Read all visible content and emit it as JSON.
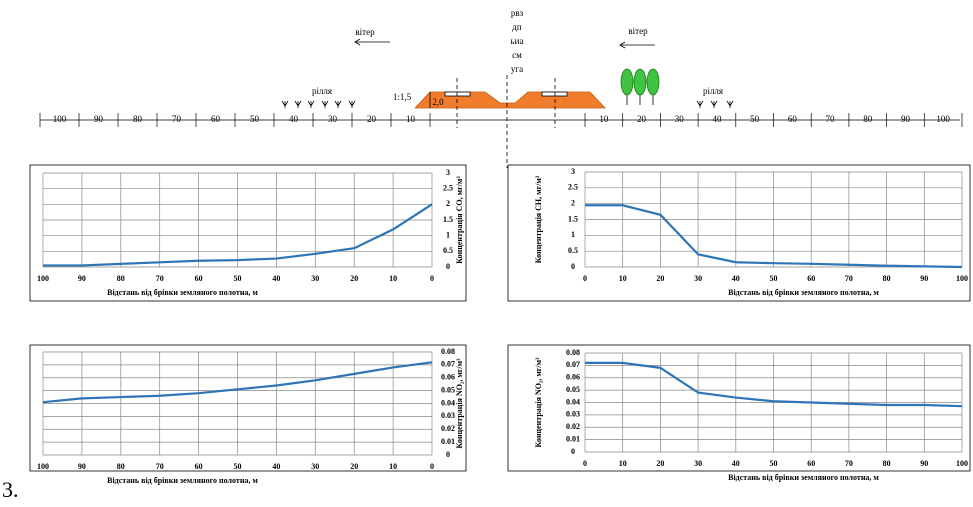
{
  "diagram": {
    "median_lines": [
      "рвз",
      "дп",
      "ьиа",
      "см",
      "уга"
    ],
    "wind_left": "вітер",
    "wind_right": "вітер",
    "field_left": "рілля",
    "field_right": "рілля",
    "slope": "1:1,5",
    "height": "2,0",
    "scale_left": [
      100,
      90,
      80,
      70,
      60,
      50,
      40,
      30,
      20,
      10
    ],
    "scale_right": [
      10,
      20,
      30,
      40,
      50,
      60,
      70,
      80,
      90,
      100
    ]
  },
  "chart_data": [
    {
      "type": "line",
      "xlabel": "Відстань від брівки земляного полотна, м",
      "ylabel": "Концентрація CO, мг/м³",
      "x": [
        100,
        90,
        80,
        70,
        60,
        50,
        40,
        30,
        20,
        10,
        0
      ],
      "xlim": [
        100,
        0
      ],
      "xticks": [
        100,
        90,
        80,
        70,
        60,
        50,
        40,
        30,
        20,
        10,
        0
      ],
      "ylim": [
        0,
        3
      ],
      "yticks": [
        0,
        0.5,
        1,
        1.5,
        2,
        2.5,
        3
      ],
      "grid": true,
      "series": [
        {
          "color": "#2e75b6",
          "values": [
            0.05,
            0.05,
            0.1,
            0.15,
            0.2,
            0.22,
            0.27,
            0.42,
            0.6,
            1.2,
            2.0
          ]
        }
      ]
    },
    {
      "type": "line",
      "xlabel": "Відстань від брівки земляного полотна, м",
      "ylabel": "Концентрація CH, мг/м³",
      "x": [
        0,
        10,
        20,
        30,
        40,
        50,
        60,
        70,
        80,
        90,
        100
      ],
      "xlim": [
        0,
        100
      ],
      "xticks": [
        0,
        10,
        20,
        30,
        40,
        50,
        60,
        70,
        80,
        90,
        100
      ],
      "ylim": [
        0,
        3
      ],
      "yticks": [
        0,
        0.5,
        1,
        1.5,
        2,
        2.5,
        3
      ],
      "grid": true,
      "series": [
        {
          "color": "#2e75b6",
          "values": [
            1.95,
            1.95,
            1.65,
            0.4,
            0.15,
            0.12,
            0.1,
            0.07,
            0.04,
            0.02,
            0.0
          ]
        }
      ]
    },
    {
      "type": "line",
      "xlabel": "Відстань від брівки земляного полотна, м",
      "ylabel": "Концентрація NO₂, мг/м³",
      "x": [
        100,
        90,
        80,
        70,
        60,
        50,
        40,
        30,
        20,
        10,
        0
      ],
      "xlim": [
        100,
        0
      ],
      "xticks": [
        100,
        90,
        80,
        70,
        60,
        50,
        40,
        30,
        20,
        10,
        0
      ],
      "ylim": [
        0,
        0.08
      ],
      "yticks": [
        0,
        0.01,
        0.02,
        0.03,
        0.04,
        0.05,
        0.06,
        0.07,
        0.08
      ],
      "grid": true,
      "series": [
        {
          "color": "#2e75b6",
          "values": [
            0.041,
            0.044,
            0.045,
            0.046,
            0.048,
            0.051,
            0.054,
            0.058,
            0.063,
            0.068,
            0.072
          ]
        }
      ]
    },
    {
      "type": "line",
      "xlabel": "Відстань від брівки земляного полотна, м",
      "ylabel": "Концентрація NO₂, мг/м³",
      "x": [
        0,
        10,
        20,
        30,
        40,
        50,
        60,
        70,
        80,
        90,
        100
      ],
      "xlim": [
        0,
        100
      ],
      "xticks": [
        0,
        10,
        20,
        30,
        40,
        50,
        60,
        70,
        80,
        90,
        100
      ],
      "ylim": [
        0,
        0.08
      ],
      "yticks": [
        0,
        0.01,
        0.02,
        0.03,
        0.04,
        0.05,
        0.06,
        0.07,
        0.08
      ],
      "grid": true,
      "series": [
        {
          "color": "#2e75b6",
          "values": [
            0.072,
            0.072,
            0.068,
            0.048,
            0.044,
            0.041,
            0.04,
            0.039,
            0.038,
            0.038,
            0.037
          ]
        }
      ]
    }
  ],
  "figure_label": "3."
}
